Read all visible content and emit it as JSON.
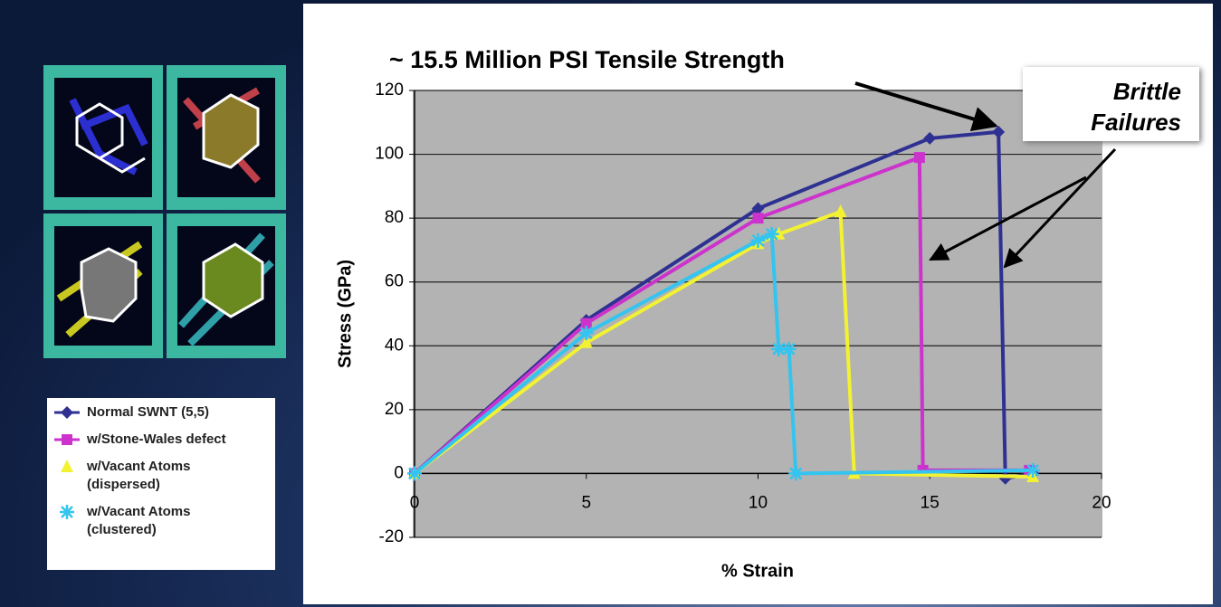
{
  "chart_data": {
    "type": "line",
    "title": "~ 15.5 Million PSI Tensile Strength",
    "annotation": "Brittle\nFailures",
    "xlabel": "% Strain",
    "ylabel": "Stress (GPa)",
    "xlim": [
      0,
      20
    ],
    "ylim": [
      -20,
      120
    ],
    "xticks": [
      0,
      5,
      10,
      15,
      20
    ],
    "yticks": [
      -20,
      0,
      20,
      40,
      60,
      80,
      100,
      120
    ],
    "grid": true,
    "legend": "bottom-left",
    "series": [
      {
        "name": "Normal SWNT (5,5)",
        "color": "#2e3192",
        "marker": "diamond",
        "x": [
          0,
          5,
          10,
          15,
          17,
          17.2,
          18
        ],
        "values": [
          0,
          48,
          83,
          105,
          107,
          -1.5,
          0
        ]
      },
      {
        "name": "w/Stone-Wales defect",
        "color": "#cc33cc",
        "marker": "square",
        "x": [
          0,
          5,
          10,
          14.7,
          14.8,
          17.9
        ],
        "values": [
          0,
          47,
          80,
          99,
          1,
          1
        ]
      },
      {
        "name": "w/Vacant Atoms\n(dispersed)",
        "color": "#f2f233",
        "marker": "triangle",
        "x": [
          0,
          5,
          10,
          10.6,
          12.4,
          12.8,
          18
        ],
        "values": [
          0,
          41,
          72,
          75,
          82,
          0,
          -1
        ]
      },
      {
        "name": "w/Vacant Atoms\n(clustered)",
        "color": "#33c4f0",
        "marker": "star",
        "x": [
          0,
          5,
          10,
          10.4,
          10.6,
          10.9,
          11.1,
          18
        ],
        "values": [
          0,
          44,
          73,
          75,
          39,
          39,
          0,
          1
        ]
      }
    ]
  }
}
